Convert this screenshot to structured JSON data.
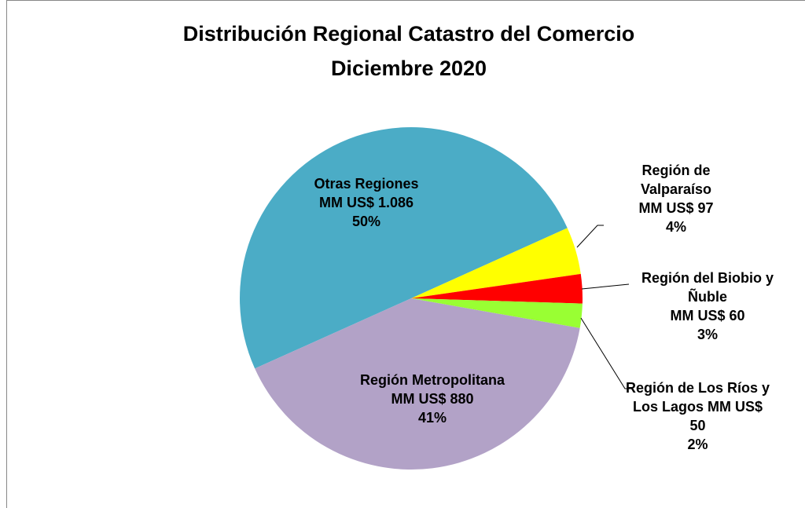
{
  "chart_data": {
    "type": "pie",
    "title": "Distribución Regional Catastro del Comercio",
    "subtitle": "Diciembre 2020",
    "categories": [
      "Otras Regiones",
      "Región de Valparaíso",
      "Región del Biobio y Ñuble",
      "Región de Los Ríos y Los Lagos",
      "Región Metropolitana"
    ],
    "values": [
      1086,
      97,
      60,
      50,
      880
    ],
    "value_labels": [
      "MM US$ 1.086",
      "MM US$ 97",
      "MM US$ 60",
      "MM US$ 50",
      "MM US$ 880"
    ],
    "percent_labels": [
      "50%",
      "4%",
      "3%",
      "2%",
      "41%"
    ],
    "colors": [
      "#4bacc6",
      "#ffff00",
      "#ff0000",
      "#99ff33",
      "#b2a2c7"
    ]
  }
}
